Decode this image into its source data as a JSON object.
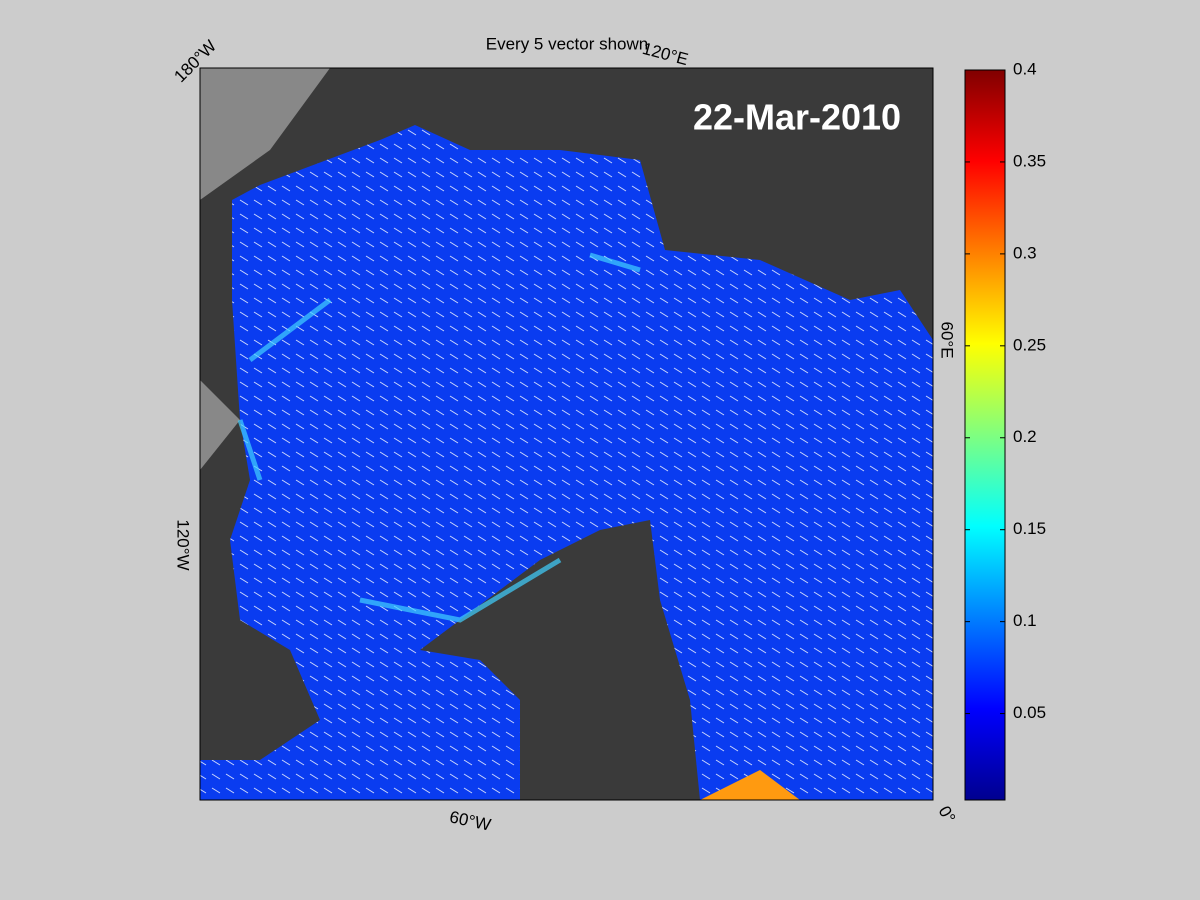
{
  "map": {
    "title": "Every 5 vector shown",
    "date": "22-Mar-2010",
    "edge_labels": [
      "180°W",
      "120°E",
      "60°E",
      "0°",
      "60°W",
      "120°W"
    ],
    "colorbar": {
      "clim": [
        0.003,
        0.4
      ],
      "ticks": [
        0.05,
        0.1,
        0.15,
        0.2,
        0.25,
        0.3,
        0.35,
        0.4
      ]
    }
  }
}
